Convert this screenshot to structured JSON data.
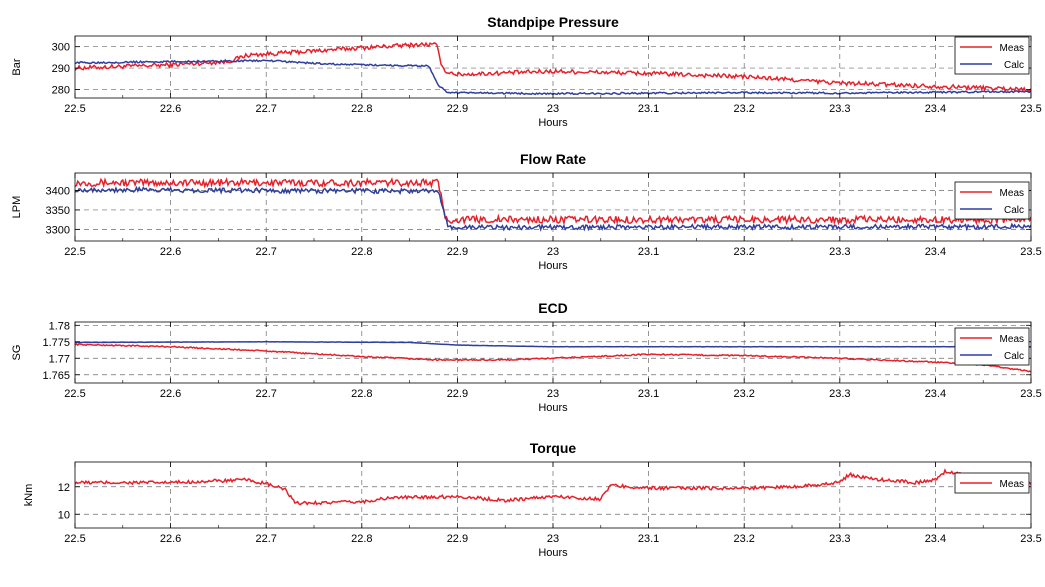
{
  "colors": {
    "meas": "#e8202a",
    "calc": "#2e3fa0",
    "grid": "#6b6b6b",
    "axis": "#000000"
  },
  "chart_data": [
    {
      "type": "line",
      "title": "Standpipe Pressure",
      "xlabel": "Hours",
      "ylabel": "Bar",
      "xlim": [
        22.5,
        23.5
      ],
      "ylim": [
        276,
        305
      ],
      "xticks": [
        22.5,
        22.6,
        22.7,
        22.8,
        22.9,
        23,
        23.1,
        23.2,
        23.3,
        23.4,
        23.5
      ],
      "xtick_labels": [
        "22.5",
        "22.6",
        "22.7",
        "22.8",
        "22.9",
        "23",
        "23.1",
        "23.2",
        "23.3",
        "23.4",
        "23.5"
      ],
      "yticks": [
        280,
        290,
        300
      ],
      "ytick_labels": [
        "280",
        "290",
        "300"
      ],
      "grid": "dashed",
      "legend": "top-right",
      "series": [
        {
          "name": "Meas",
          "color": "#e8202a",
          "noise": 1.0,
          "points": [
            [
              22.5,
              290
            ],
            [
              22.6,
              291.5
            ],
            [
              22.66,
              293
            ],
            [
              22.68,
              296
            ],
            [
              22.75,
              298
            ],
            [
              22.8,
              299.5
            ],
            [
              22.86,
              301
            ],
            [
              22.878,
              301
            ],
            [
              22.885,
              289
            ],
            [
              22.9,
              287
            ],
            [
              23.0,
              288.5
            ],
            [
              23.1,
              287.5
            ],
            [
              23.2,
              286
            ],
            [
              23.3,
              283
            ],
            [
              23.4,
              281.5
            ],
            [
              23.5,
              280
            ]
          ]
        },
        {
          "name": "Calc",
          "color": "#2e3fa0",
          "noise": 0.4,
          "points": [
            [
              22.5,
              292.5
            ],
            [
              22.6,
              293
            ],
            [
              22.7,
              293.5
            ],
            [
              22.76,
              292
            ],
            [
              22.8,
              291.5
            ],
            [
              22.87,
              291
            ],
            [
              22.88,
              282
            ],
            [
              22.89,
              278.5
            ],
            [
              23.0,
              278
            ],
            [
              23.2,
              278.5
            ],
            [
              23.3,
              278.3
            ],
            [
              23.5,
              279
            ]
          ]
        }
      ]
    },
    {
      "type": "line",
      "title": "Flow Rate",
      "xlabel": "Hours",
      "ylabel": "LPM",
      "xlim": [
        22.5,
        23.5
      ],
      "ylim": [
        3270,
        3445
      ],
      "xticks": [
        22.5,
        22.6,
        22.7,
        22.8,
        22.9,
        23,
        23.1,
        23.2,
        23.3,
        23.4,
        23.5
      ],
      "xtick_labels": [
        "22.5",
        "22.6",
        "22.7",
        "22.8",
        "22.9",
        "23",
        "23.1",
        "23.2",
        "23.3",
        "23.4",
        "23.5"
      ],
      "yticks": [
        3300,
        3350,
        3400
      ],
      "ytick_labels": [
        "3300",
        "3350",
        "3400"
      ],
      "grid": "dashed",
      "legend": "top-right",
      "series": [
        {
          "name": "Meas",
          "color": "#e8202a",
          "noise": 9,
          "points": [
            [
              22.5,
              3420
            ],
            [
              22.88,
              3420
            ],
            [
              22.888,
              3325
            ],
            [
              23.5,
              3325
            ]
          ]
        },
        {
          "name": "Calc",
          "color": "#2e3fa0",
          "noise": 6,
          "points": [
            [
              22.5,
              3402
            ],
            [
              22.7,
              3400
            ],
            [
              22.88,
              3398
            ],
            [
              22.89,
              3305
            ],
            [
              23.5,
              3307
            ]
          ]
        }
      ]
    },
    {
      "type": "line",
      "title": "ECD",
      "xlabel": "Hours",
      "ylabel": "SG",
      "xlim": [
        22.5,
        23.5
      ],
      "ylim": [
        1.7625,
        1.781
      ],
      "xticks": [
        22.5,
        22.6,
        22.7,
        22.8,
        22.9,
        23,
        23.1,
        23.2,
        23.3,
        23.4,
        23.5
      ],
      "xtick_labels": [
        "22.5",
        "22.6",
        "22.7",
        "22.8",
        "22.9",
        "23",
        "23.1",
        "23.2",
        "23.3",
        "23.4",
        "23.5"
      ],
      "yticks": [
        1.765,
        1.77,
        1.775,
        1.78
      ],
      "ytick_labels": [
        "1.765",
        "1.77",
        "1.775",
        "1.78"
      ],
      "grid": "dashed",
      "legend": "top-right",
      "series": [
        {
          "name": "Meas",
          "color": "#e8202a",
          "noise": 0.0002,
          "points": [
            [
              22.5,
              1.7742
            ],
            [
              22.6,
              1.7735
            ],
            [
              22.7,
              1.7722
            ],
            [
              22.8,
              1.7705
            ],
            [
              22.88,
              1.7695
            ],
            [
              22.95,
              1.7695
            ],
            [
              23.0,
              1.77
            ],
            [
              23.1,
              1.7712
            ],
            [
              23.2,
              1.7708
            ],
            [
              23.3,
              1.77
            ],
            [
              23.4,
              1.7688
            ],
            [
              23.45,
              1.768
            ],
            [
              23.5,
              1.766
            ]
          ]
        },
        {
          "name": "Calc",
          "color": "#2e3fa0",
          "noise": 4e-05,
          "points": [
            [
              22.5,
              1.7748
            ],
            [
              22.7,
              1.775
            ],
            [
              22.85,
              1.7748
            ],
            [
              22.9,
              1.774
            ],
            [
              23.0,
              1.7735
            ],
            [
              23.5,
              1.7735
            ]
          ]
        }
      ]
    },
    {
      "type": "line",
      "title": "Torque",
      "xlabel": "Hours",
      "ylabel": "kNm",
      "xlim": [
        22.5,
        23.5
      ],
      "ylim": [
        9,
        13.8
      ],
      "xticks": [
        22.5,
        22.6,
        22.7,
        22.8,
        22.9,
        23,
        23.1,
        23.2,
        23.3,
        23.4,
        23.5
      ],
      "xtick_labels": [
        "22.5",
        "22.6",
        "22.7",
        "22.8",
        "22.9",
        "23",
        "23.1",
        "23.2",
        "23.3",
        "23.4",
        "23.5"
      ],
      "yticks": [
        10,
        12
      ],
      "ytick_labels": [
        "10",
        "12"
      ],
      "grid": "dashed",
      "legend": "top-right",
      "series": [
        {
          "name": "Meas",
          "color": "#e8202a",
          "noise": 0.12,
          "points": [
            [
              22.5,
              12.3
            ],
            [
              22.6,
              12.3
            ],
            [
              22.68,
              12.5
            ],
            [
              22.7,
              12.2
            ],
            [
              22.72,
              11.8
            ],
            [
              22.73,
              10.8
            ],
            [
              22.8,
              10.9
            ],
            [
              22.83,
              11.2
            ],
            [
              22.9,
              11.3
            ],
            [
              22.95,
              11.0
            ],
            [
              23.0,
              11.3
            ],
            [
              23.05,
              11.1
            ],
            [
              23.06,
              12.1
            ],
            [
              23.1,
              11.9
            ],
            [
              23.2,
              11.9
            ],
            [
              23.25,
              12.0
            ],
            [
              23.3,
              12.3
            ],
            [
              23.31,
              12.9
            ],
            [
              23.33,
              12.6
            ],
            [
              23.38,
              12.3
            ],
            [
              23.4,
              12.5
            ],
            [
              23.41,
              13.1
            ],
            [
              23.44,
              12.8
            ],
            [
              23.47,
              12.7
            ],
            [
              23.5,
              12.2
            ]
          ]
        }
      ]
    }
  ]
}
